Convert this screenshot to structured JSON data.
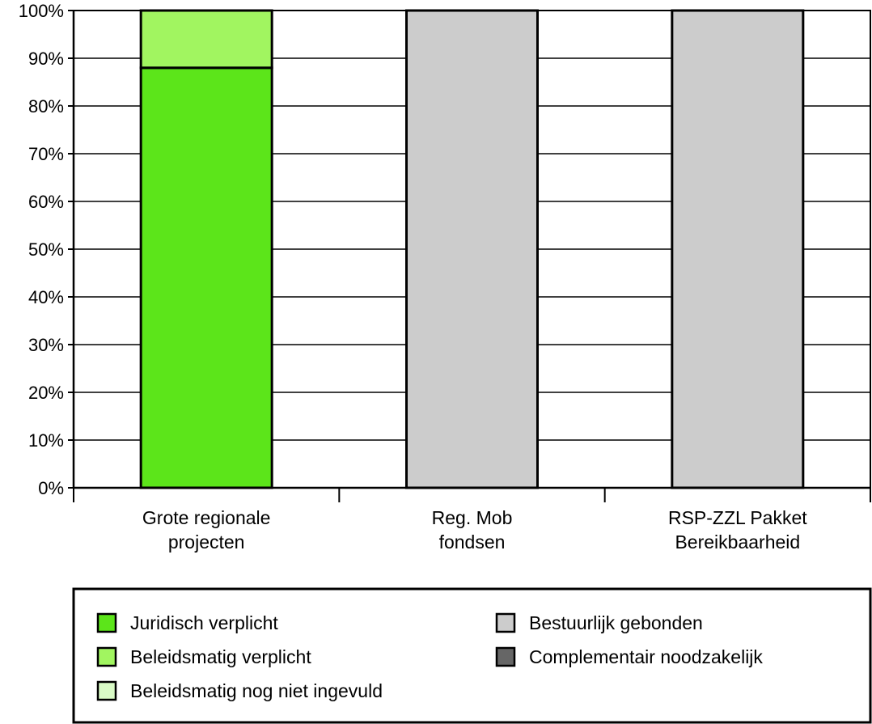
{
  "chart_data": {
    "type": "bar",
    "stacked": true,
    "categories": [
      "Grote regionale projecten",
      "Reg. Mob fondsen",
      "RSP-ZZL Pakket Bereikbaarheid"
    ],
    "category_lines": [
      [
        "Grote regionale",
        "projecten"
      ],
      [
        "Reg. Mob",
        "fondsen"
      ],
      [
        "RSP-ZZL Pakket",
        "Bereikbaarheid"
      ]
    ],
    "series": [
      {
        "name": "Juridisch verplicht",
        "color": "#5ce51a",
        "values": [
          88,
          0,
          0
        ]
      },
      {
        "name": "Beleidsmatig verplicht",
        "color": "#a1f560",
        "values": [
          12,
          0,
          0
        ]
      },
      {
        "name": "Beleidsmatig nog niet ingevuld",
        "color": "#d9fbc6",
        "values": [
          0,
          0,
          0
        ]
      },
      {
        "name": "Bestuurlijk gebonden",
        "color": "#cccccc",
        "values": [
          0,
          100,
          100
        ]
      },
      {
        "name": "Complementair noodzakelijk",
        "color": "#666666",
        "values": [
          0,
          0,
          0
        ]
      }
    ],
    "ylim": [
      0,
      100
    ],
    "yticks": [
      0,
      10,
      20,
      30,
      40,
      50,
      60,
      70,
      80,
      90,
      100
    ],
    "ytick_labels": [
      "0%",
      "10%",
      "20%",
      "30%",
      "40%",
      "50%",
      "60%",
      "70%",
      "80%",
      "90%",
      "100%"
    ],
    "grid": true,
    "legend": {
      "placement": "bottom",
      "columns": [
        [
          "Juridisch verplicht",
          "Beleidsmatig verplicht",
          "Beleidsmatig nog niet ingevuld"
        ],
        [
          "Bestuurlijk gebonden",
          "Complementair noodzakelijk"
        ]
      ]
    }
  }
}
